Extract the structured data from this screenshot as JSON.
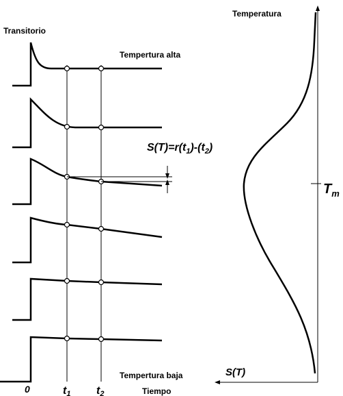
{
  "labels": {
    "transient": "Transitorio",
    "high_temp": "Tempertura alta",
    "formula": [
      "S(T)=r(t",
      "1",
      ")-(t",
      "2",
      ")"
    ],
    "low_temp": "Tempertura baja",
    "zero": "0",
    "t1": {
      "base": "t",
      "sub": "1"
    },
    "t2": {
      "base": "t",
      "sub": "2"
    },
    "time": "Tiempo",
    "temperature": "Temperatura",
    "tm": {
      "base": "T",
      "sub": "m"
    },
    "s_axis": "S(T)"
  }
}
